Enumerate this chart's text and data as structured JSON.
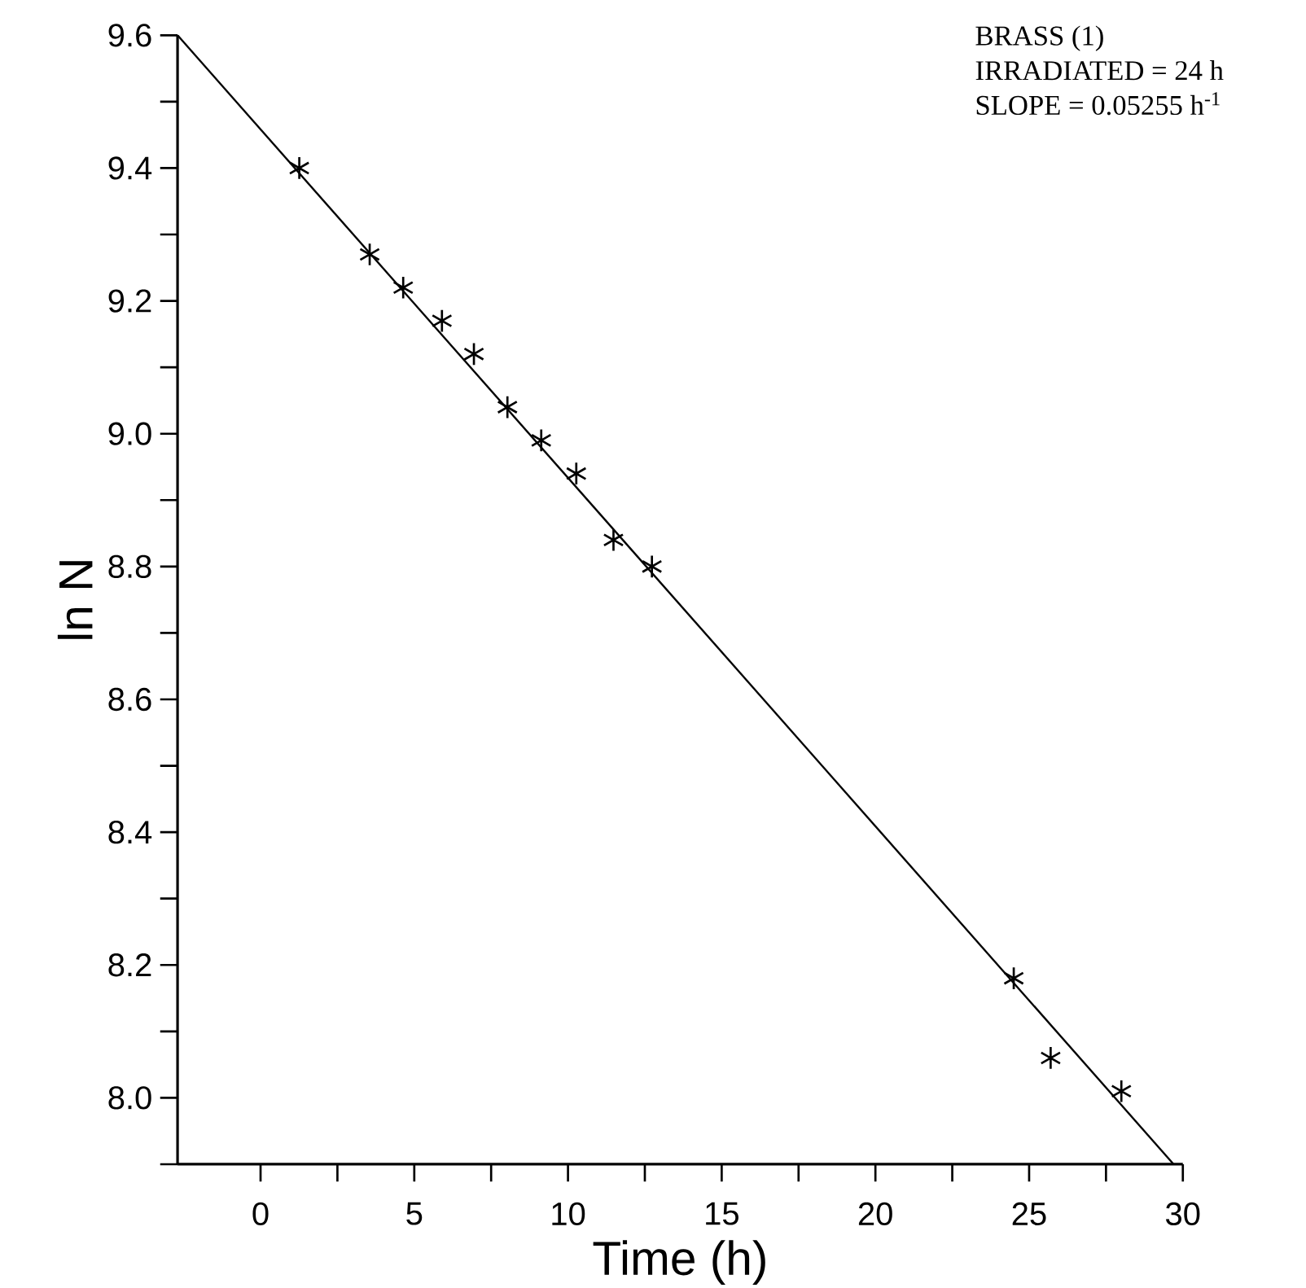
{
  "chart_data": {
    "type": "scatter",
    "xlabel": "Time (h)",
    "ylabel": "ln N",
    "annotations": [
      "BRASS (1)",
      "IRRADIATED = 24 h",
      "SLOPE = 0.05255 h$^{-1}$"
    ],
    "xlim": [
      -2.7,
      30
    ],
    "ylim": [
      7.9,
      9.6
    ],
    "xticks": [
      0,
      {
        "value": 2.5,
        "label": null
      },
      5,
      {
        "value": 7.5,
        "label": null
      },
      10,
      {
        "value": 12.5,
        "label": null
      },
      15,
      {
        "value": 17.5,
        "label": null
      },
      20,
      {
        "value": 22.5,
        "label": null
      },
      25,
      {
        "value": 27.5,
        "label": null
      },
      30
    ],
    "yticks": [
      {
        "value": 7.9,
        "label": null
      },
      {
        "value": 8.0,
        "label": "8.0"
      },
      {
        "value": 8.1,
        "label": null
      },
      8.2,
      {
        "value": 8.3,
        "label": null
      },
      8.4,
      {
        "value": 8.5,
        "label": null
      },
      8.6,
      {
        "value": 8.7,
        "label": null
      },
      8.8,
      {
        "value": 8.9,
        "label": null
      },
      {
        "value": 9.0,
        "label": "9.0"
      },
      {
        "value": 9.1,
        "label": null
      },
      9.2,
      {
        "value": 9.3,
        "label": null
      },
      9.4,
      {
        "value": 9.5,
        "label": null
      },
      9.6
    ],
    "series": [
      {
        "type": "scatter",
        "color": "#000000",
        "marker": "cross",
        "x": [
          1.26,
          3.55,
          4.64,
          5.9,
          6.94,
          8.03,
          9.13,
          10.27,
          11.48,
          12.73,
          24.5,
          25.7,
          28.0
        ],
        "values": [
          9.4,
          9.27,
          9.22,
          9.17,
          9.12,
          9.04,
          8.99,
          8.94,
          8.84,
          8.8,
          8.18,
          8.06,
          8.01
        ]
      },
      {
        "type": "line",
        "color": "#000000",
        "marker": "none",
        "line_style": "solid",
        "x": [
          -2.7,
          29.7
        ],
        "values": [
          9.6,
          7.9
        ]
      }
    ]
  }
}
